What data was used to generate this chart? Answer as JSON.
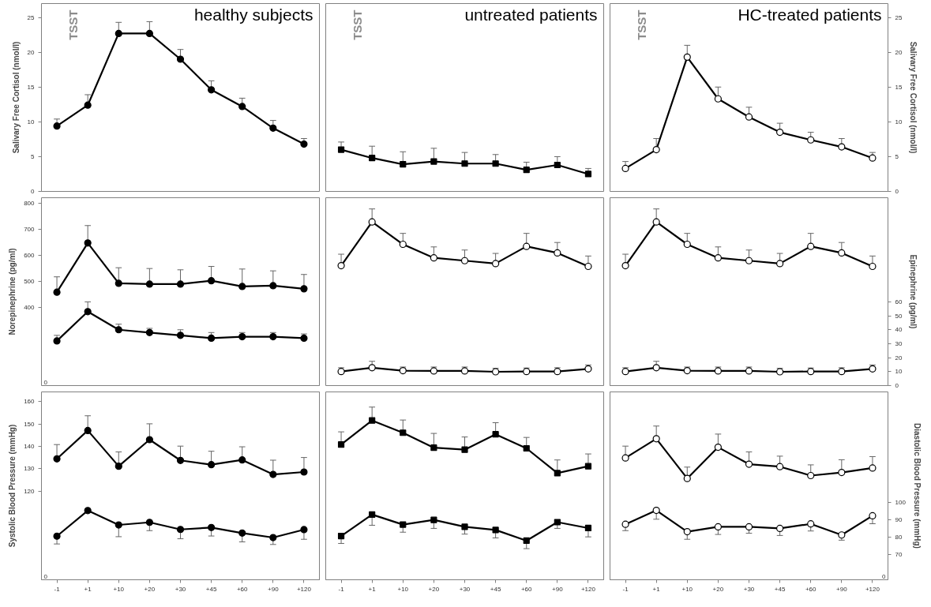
{
  "chart_data": [
    {
      "type": "line",
      "title": "healthy subjects",
      "ylabel": "Salivary Free Cortisol (nmol/l)",
      "categories": [
        "-1",
        "+1",
        "+10",
        "+20",
        "+30",
        "+45",
        "+60",
        "+90",
        "+120"
      ],
      "ylim": [
        0,
        27
      ],
      "yticks": [
        0,
        5,
        10,
        15,
        20,
        25
      ],
      "tick_labels": "y",
      "annotations": [
        "TSST"
      ],
      "series": [
        {
          "color": "#000000",
          "marker": "circle",
          "values": [
            9.4,
            12.4,
            22.7,
            22.7,
            19.0,
            14.6,
            12.2,
            9.1,
            6.8
          ],
          "errors": [
            [
              9.4,
              10.4
            ],
            [
              12.4,
              13.9
            ],
            [
              22.7,
              24.3
            ],
            [
              22.7,
              24.4
            ],
            [
              19.0,
              20.4
            ],
            [
              14.6,
              15.9
            ],
            [
              12.2,
              13.4
            ],
            [
              9.1,
              10.2
            ],
            [
              6.8,
              7.6
            ]
          ]
        }
      ]
    },
    {
      "type": "line",
      "title": "untreated patients",
      "categories": [
        "-1",
        "+1",
        "+10",
        "+20",
        "+30",
        "+45",
        "+60",
        "+90",
        "+120"
      ],
      "ylim": [
        0,
        27
      ],
      "tick_labels": false,
      "annotations": [
        "TSST"
      ],
      "series": [
        {
          "color": "#000000",
          "marker": "square",
          "values": [
            6.0,
            4.8,
            3.9,
            4.3,
            4.0,
            4.0,
            3.1,
            3.8,
            2.5
          ],
          "errors": [
            [
              6.0,
              7.1
            ],
            [
              4.8,
              6.5
            ],
            [
              3.9,
              5.7
            ],
            [
              4.3,
              6.2
            ],
            [
              4.0,
              5.6
            ],
            [
              4.0,
              5.3
            ],
            [
              3.1,
              4.2
            ],
            [
              3.8,
              5.0
            ],
            [
              2.5,
              3.3
            ]
          ]
        }
      ]
    },
    {
      "type": "line",
      "title": "HC-treated patients",
      "y2label": "Salivary Free Cortisol (nmol/l)",
      "categories": [
        "-1",
        "+1",
        "+10",
        "+20",
        "+30",
        "+45",
        "+60",
        "+90",
        "+120"
      ],
      "y2lim": [
        0,
        27
      ],
      "y2ticks": [
        0,
        5,
        10,
        15,
        20,
        25
      ],
      "tick_labels": "y",
      "annotations": [
        "TSST"
      ],
      "series": [
        {
          "color": "#000000",
          "marker": "circle_open",
          "axis": "y2",
          "values": [
            3.3,
            6.0,
            19.3,
            13.3,
            10.7,
            8.5,
            7.4,
            6.4,
            4.8
          ],
          "errors": [
            [
              3.3,
              4.3
            ],
            [
              6.0,
              7.6
            ],
            [
              19.3,
              21.0
            ],
            [
              13.3,
              15.0
            ],
            [
              10.7,
              12.1
            ],
            [
              8.5,
              9.8
            ],
            [
              7.4,
              8.5
            ],
            [
              6.4,
              7.6
            ],
            [
              4.8,
              5.6
            ]
          ]
        }
      ]
    },
    {
      "type": "line",
      "ylabel": "Norepinephrine (pg/ml)",
      "categories": [
        "-1",
        "+1",
        "+10",
        "+20",
        "+30",
        "+45",
        "+60",
        "+90",
        "+120"
      ],
      "ylim": [
        99,
        821
      ],
      "yticks": [
        400,
        500,
        600,
        700,
        800
      ],
      "y2lim": [
        0,
        134.6
      ],
      "tick_labels": "y",
      "annotations": [
        "0"
      ],
      "series": [
        {
          "color": "#000000",
          "marker": "circle",
          "values": [
            458,
            647,
            492,
            489,
            489,
            502,
            480,
            483,
            471
          ],
          "errors": [
            [
              458,
              517
            ],
            [
              647,
              714
            ],
            [
              492,
              552
            ],
            [
              489,
              549
            ],
            [
              489,
              544
            ],
            [
              502,
              557
            ],
            [
              480,
              547
            ],
            [
              483,
              540
            ],
            [
              471,
              526
            ]
          ]
        },
        {
          "color": "#000000",
          "marker": "circle",
          "axis": "y2",
          "values": [
            32,
            53,
            40,
            38,
            36,
            34,
            35,
            35,
            34
          ],
          "errors": [
            [
              32,
              36
            ],
            [
              53,
              60
            ],
            [
              40,
              44
            ],
            [
              38,
              41
            ],
            [
              36,
              40
            ],
            [
              34,
              38
            ],
            [
              35,
              38
            ],
            [
              35,
              38
            ],
            [
              34,
              37
            ]
          ]
        }
      ]
    },
    {
      "type": "line",
      "categories": [
        "-1",
        "+1",
        "+10",
        "+20",
        "+30",
        "+45",
        "+60",
        "+90",
        "+120"
      ],
      "ylim": [
        99,
        821
      ],
      "y2lim": [
        0,
        134.6
      ],
      "tick_labels": false,
      "series": [
        {
          "color": "#000000",
          "marker": "circle_open",
          "values": [
            560,
            728,
            642,
            590,
            579,
            568,
            634,
            609,
            557
          ],
          "errors": [
            [
              560,
              604
            ],
            [
              728,
              778
            ],
            [
              642,
              684
            ],
            [
              590,
              632
            ],
            [
              579,
              620
            ],
            [
              568,
              607
            ],
            [
              634,
              684
            ],
            [
              609,
              649
            ],
            [
              557,
              597
            ]
          ]
        },
        {
          "color": "#000000",
          "marker": "circle_open",
          "axis": "y2",
          "values": [
            10.1,
            12.8,
            10.7,
            10.5,
            10.5,
            9.9,
            10.1,
            10.1,
            12.0
          ],
          "errors": [
            [
              10.1,
              12.8
            ],
            [
              12.8,
              17.4
            ],
            [
              10.7,
              13.3
            ],
            [
              10.5,
              13.3
            ],
            [
              10.5,
              13.3
            ],
            [
              9.9,
              12.4
            ],
            [
              10.1,
              12.6
            ],
            [
              10.1,
              12.8
            ],
            [
              12.0,
              14.8
            ]
          ]
        }
      ]
    },
    {
      "type": "line",
      "y2label": "Epinephrine (pg/ml)",
      "categories": [
        "-1",
        "+1",
        "+10",
        "+20",
        "+30",
        "+45",
        "+60",
        "+90",
        "+120"
      ],
      "ylim": [
        99,
        821
      ],
      "y2lim": [
        0,
        134.6
      ],
      "y2ticks": [
        0,
        10,
        20,
        30,
        40,
        50,
        60
      ],
      "tick_labels": "y",
      "series": [
        {
          "color": "#000000",
          "marker": "circle_open",
          "values": [
            560,
            728,
            642,
            590,
            579,
            568,
            634,
            609,
            557
          ],
          "errors": [
            [
              560,
              604
            ],
            [
              728,
              778
            ],
            [
              642,
              684
            ],
            [
              590,
              632
            ],
            [
              579,
              620
            ],
            [
              568,
              607
            ],
            [
              634,
              684
            ],
            [
              609,
              649
            ],
            [
              557,
              597
            ]
          ]
        },
        {
          "color": "#000000",
          "marker": "circle_open",
          "axis": "y2",
          "values": [
            10.1,
            12.8,
            10.7,
            10.5,
            10.5,
            9.9,
            10.1,
            10.1,
            12.0
          ],
          "errors": [
            [
              10.1,
              12.8
            ],
            [
              12.8,
              17.4
            ],
            [
              10.7,
              13.3
            ],
            [
              10.5,
              13.3
            ],
            [
              10.5,
              13.3
            ],
            [
              9.9,
              12.4
            ],
            [
              10.1,
              12.6
            ],
            [
              10.1,
              12.8
            ],
            [
              12.0,
              14.8
            ]
          ]
        }
      ]
    },
    {
      "type": "line",
      "ylabel": "Systolic Blood Pressure (mmHg)",
      "categories": [
        "-1",
        "+1",
        "+10",
        "+20",
        "+30",
        "+45",
        "+60",
        "+90",
        "+120"
      ],
      "ylim": [
        80.2,
        164.4
      ],
      "yticks": [
        120,
        130,
        140,
        150,
        160
      ],
      "y2lim": [
        55.2,
        163.8
      ],
      "annotations": [
        "0"
      ],
      "series": [
        {
          "color": "#000000",
          "marker": "circle",
          "values": [
            134.4,
            147.1,
            131.1,
            143.0,
            133.7,
            131.8,
            133.9,
            127.4,
            128.5
          ],
          "errors": [
            [
              134.4,
              140.8
            ],
            [
              147.1,
              153.7
            ],
            [
              131.1,
              137.5
            ],
            [
              143.0,
              150.1
            ],
            [
              133.7,
              140.1
            ],
            [
              131.8,
              137.8
            ],
            [
              133.9,
              139.8
            ],
            [
              127.4,
              133.8
            ],
            [
              128.5,
              135.0
            ]
          ]
        },
        {
          "color": "#000000",
          "marker": "circle",
          "axis": "y2",
          "values": [
            80.4,
            95.2,
            86.9,
            88.4,
            84.3,
            85.4,
            82.2,
            79.6,
            84.2
          ],
          "errors": [
            [
              75.9,
              80.4
            ],
            null,
            [
              80.1,
              86.9
            ],
            [
              83.6,
              88.4
            ],
            [
              78.9,
              84.3
            ],
            [
              80.5,
              85.4
            ],
            [
              77.1,
              82.2
            ],
            [
              75.6,
              79.6
            ],
            [
              78.6,
              84.2
            ]
          ]
        }
      ]
    },
    {
      "type": "line",
      "categories": [
        "-1",
        "+1",
        "+10",
        "+20",
        "+30",
        "+45",
        "+60",
        "+90",
        "+120"
      ],
      "ylim": [
        80.2,
        164.4
      ],
      "y2lim": [
        55.2,
        163.8
      ],
      "tick_labels": "x",
      "series": [
        {
          "color": "#000000",
          "marker": "square",
          "values": [
            140.8,
            151.6,
            146.1,
            139.4,
            138.5,
            145.4,
            139.1,
            128.0,
            131.1
          ],
          "errors": [
            [
              140.8,
              146.5
            ],
            [
              151.6,
              157.6
            ],
            [
              146.1,
              151.8
            ],
            [
              139.4,
              145.8
            ],
            [
              138.5,
              144.2
            ],
            [
              145.4,
              150.6
            ],
            [
              139.1,
              144.0
            ],
            [
              128.0,
              133.9
            ],
            [
              131.1,
              136.6
            ]
          ]
        },
        {
          "color": "#000000",
          "marker": "square",
          "axis": "y2",
          "values": [
            80.5,
            92.9,
            87.1,
            89.8,
            85.8,
            84.0,
            77.8,
            88.5,
            85.1
          ],
          "errors": [
            [
              76.2,
              80.5
            ],
            [
              86.7,
              92.9
            ],
            [
              82.7,
              87.1
            ],
            [
              84.9,
              89.8
            ],
            [
              81.6,
              85.8
            ],
            [
              79.4,
              84.0
            ],
            [
              73.2,
              77.8
            ],
            [
              84.9,
              88.5
            ],
            [
              80.0,
              85.1
            ]
          ]
        }
      ]
    },
    {
      "type": "line",
      "y2label": "Diastolic Blood Pressure (mmHg)",
      "categories": [
        "-1",
        "+1",
        "+10",
        "+20",
        "+30",
        "+45",
        "+60",
        "+90",
        "+120"
      ],
      "ylim": [
        80.2,
        164.4
      ],
      "y2lim": [
        55.2,
        163.8
      ],
      "y2ticks": [
        70,
        80,
        90,
        100
      ],
      "annotations": [
        "0"
      ],
      "series": [
        {
          "color": "#000000",
          "marker": "circle_open",
          "values": [
            134.8,
            143.4,
            125.6,
            139.6,
            132.0,
            130.9,
            126.9,
            128.3,
            130.3
          ],
          "errors": [
            [
              134.8,
              140.1
            ],
            [
              143.4,
              149.1
            ],
            [
              125.6,
              130.7
            ],
            [
              139.6,
              145.5
            ],
            [
              132.0,
              137.5
            ],
            [
              130.9,
              135.6
            ],
            [
              126.9,
              131.7
            ],
            [
              128.3,
              134.0
            ],
            [
              130.3,
              135.4
            ]
          ]
        },
        {
          "color": "#000000",
          "marker": "circle_open",
          "axis": "y2",
          "values": [
            87.3,
            95.3,
            83.0,
            85.8,
            85.8,
            84.9,
            87.5,
            81.1,
            92.2
          ],
          "errors": [
            [
              83.6,
              87.3
            ],
            [
              90.2,
              95.3
            ],
            [
              78.6,
              83.0
            ],
            [
              81.4,
              85.8
            ],
            [
              82.1,
              85.8
            ],
            [
              80.8,
              84.9
            ],
            [
              83.4,
              87.5
            ],
            [
              78.1,
              81.1
            ],
            [
              87.6,
              92.2
            ]
          ]
        }
      ]
    }
  ]
}
